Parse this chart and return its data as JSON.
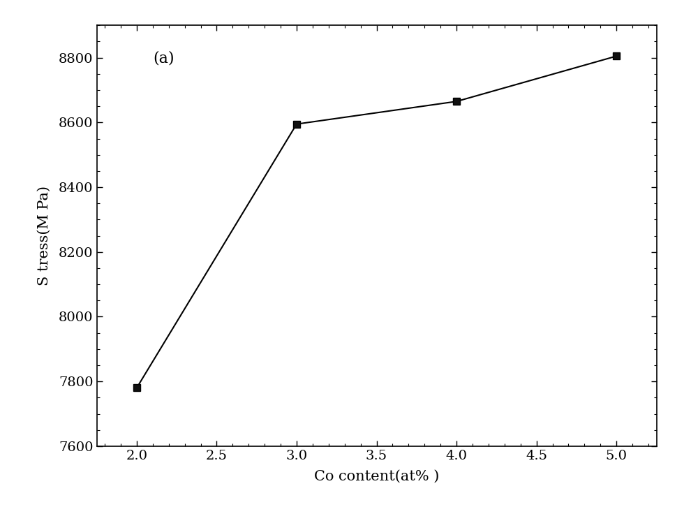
{
  "x": [
    2.0,
    3.0,
    4.0,
    5.0
  ],
  "y": [
    7780,
    8595,
    8665,
    8805
  ],
  "xlim": [
    1.75,
    5.25
  ],
  "ylim": [
    7600,
    8900
  ],
  "xticks": [
    2.0,
    2.5,
    3.0,
    3.5,
    4.0,
    4.5,
    5.0
  ],
  "yticks": [
    7600,
    7800,
    8000,
    8200,
    8400,
    8600,
    8800
  ],
  "xlabel": "Co content(at% )",
  "ylabel": "S tress(M Pa)",
  "annotation": "(a)",
  "line_color": "#000000",
  "marker": "s",
  "marker_size": 7,
  "marker_facecolor": "#111111",
  "marker_edgecolor": "#000000",
  "background_color": "#ffffff",
  "annotation_fontsize": 16,
  "label_fontsize": 15,
  "tick_fontsize": 14
}
